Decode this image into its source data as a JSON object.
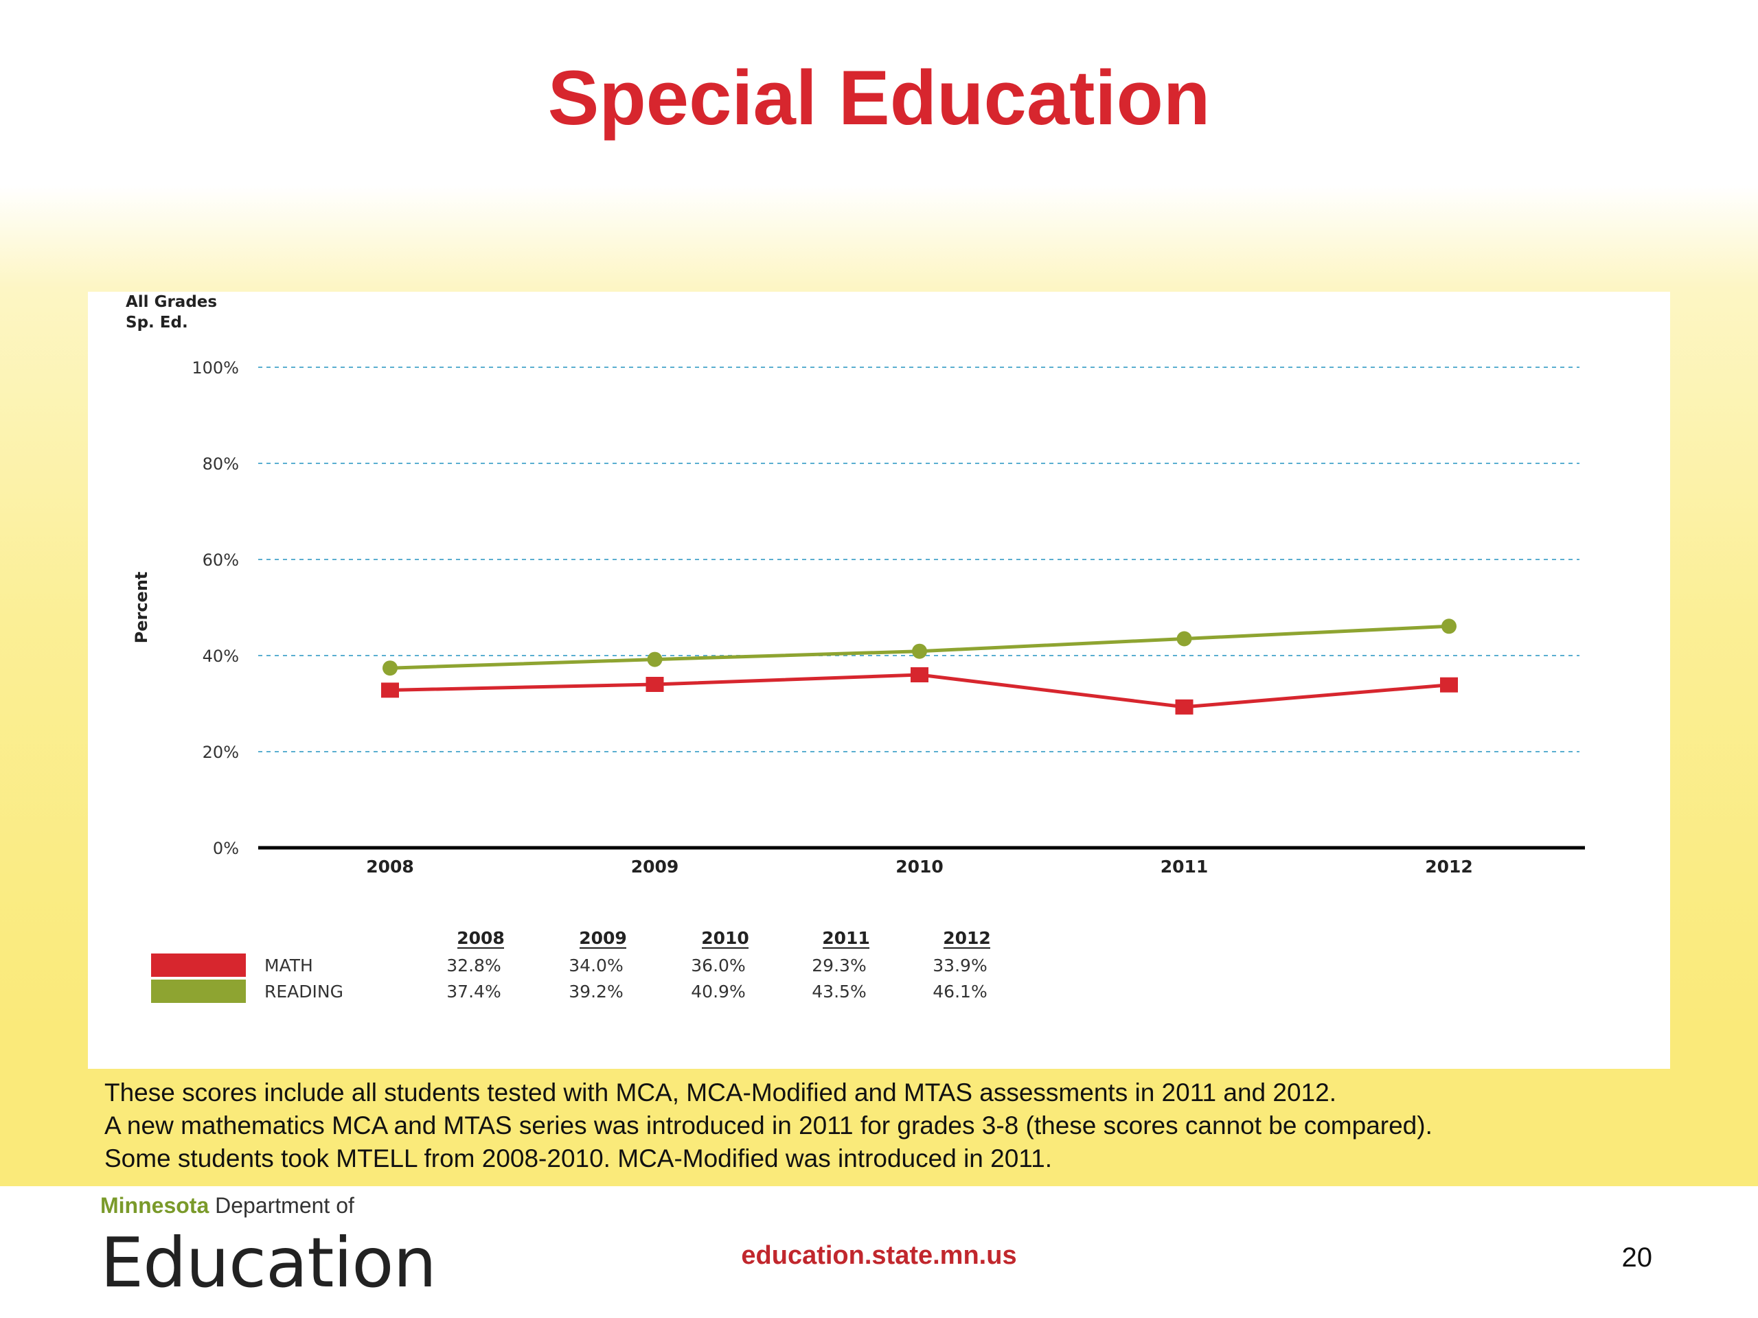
{
  "slide": {
    "title": "Special Education",
    "notes": [
      "These scores include all students tested with MCA, MCA-Modified and MTAS assessments in 2011 and 2012.",
      "A new mathematics MCA and MTAS series was introduced in 2011 for grades 3-8 (these scores cannot be compared).",
      "Some students took MTELL from 2008-2010.  MCA-Modified was introduced in 2011."
    ],
    "footer_url": "education.state.mn.us",
    "page_number": "20",
    "logo": {
      "state": "Minnesota",
      "department": "Department of",
      "name": "Education"
    }
  },
  "chart_data": {
    "type": "line",
    "title_lines": [
      "All Grades",
      "Sp. Ed."
    ],
    "ylabel": "Percent",
    "xlabel": "",
    "ylim": [
      0,
      100
    ],
    "yticks": [
      0,
      20,
      40,
      60,
      80,
      100
    ],
    "ytick_labels": [
      "0%",
      "20%",
      "40%",
      "60%",
      "80%",
      "100%"
    ],
    "categories": [
      "2008",
      "2009",
      "2010",
      "2011",
      "2012"
    ],
    "grid": true,
    "series": [
      {
        "name": "MATH",
        "color": "#d7262e",
        "marker": "square",
        "values": [
          32.8,
          34.0,
          36.0,
          29.3,
          33.9
        ],
        "labels": [
          "32.8%",
          "34.0%",
          "36.0%",
          "29.3%",
          "33.9%"
        ]
      },
      {
        "name": "READING",
        "color": "#8ea431",
        "marker": "circle",
        "values": [
          37.4,
          39.2,
          40.9,
          43.5,
          46.1
        ],
        "labels": [
          "37.4%",
          "39.2%",
          "40.9%",
          "43.5%",
          "46.1%"
        ]
      }
    ],
    "legend_placement": "bottom-left table"
  }
}
